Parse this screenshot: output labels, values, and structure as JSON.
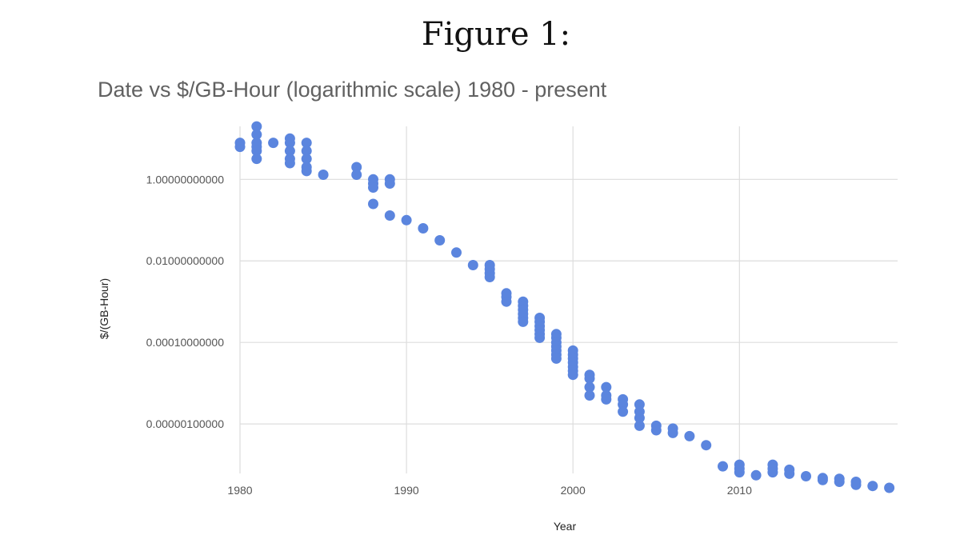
{
  "figure_caption": "Figure 1:",
  "chart_data": {
    "type": "scatter",
    "title": "Date vs $/GB-Hour (logarithmic scale) 1980 - present",
    "xlabel": "Year",
    "ylabel": "$/(GB-Hour)",
    "x_ticks": [
      1980,
      1990,
      2000,
      2010
    ],
    "x_tick_labels": [
      "1980",
      "1990",
      "2000",
      "2010"
    ],
    "y_ticks": [
      1,
      0.01,
      0.0001,
      1e-06
    ],
    "y_tick_labels": [
      "1.00000000000",
      "0.01000000000",
      "0.00010000000",
      "0.00000100000"
    ],
    "xlim": [
      1980,
      2019.5
    ],
    "ylim": [
      6.1e-08,
      20
    ],
    "y_scale": "log",
    "grid": true,
    "color": "#5b85de",
    "series": [
      {
        "points": [
          [
            1980,
            7.9
          ],
          [
            1980,
            6.3
          ],
          [
            1981,
            19.9
          ],
          [
            1981,
            12.6
          ],
          [
            1981,
            7.9
          ],
          [
            1981,
            6.3
          ],
          [
            1981,
            5.0
          ],
          [
            1981,
            3.2
          ],
          [
            1982,
            7.9
          ],
          [
            1983,
            10.0
          ],
          [
            1983,
            7.9
          ],
          [
            1983,
            5.0
          ],
          [
            1983,
            3.2
          ],
          [
            1983,
            2.5
          ],
          [
            1984,
            7.9
          ],
          [
            1984,
            5.0
          ],
          [
            1984,
            3.2
          ],
          [
            1984,
            2.0
          ],
          [
            1984,
            1.6
          ],
          [
            1985,
            1.3
          ],
          [
            1987,
            2.0
          ],
          [
            1987,
            1.3
          ],
          [
            1988,
            1.0
          ],
          [
            1988,
            0.79
          ],
          [
            1988,
            0.63
          ],
          [
            1988,
            0.25
          ],
          [
            1989,
            1.0
          ],
          [
            1989,
            0.79
          ],
          [
            1989,
            0.13
          ],
          [
            1990,
            0.1
          ],
          [
            1991,
            0.063
          ],
          [
            1992,
            0.032
          ],
          [
            1993,
            0.016
          ],
          [
            1994,
            0.0079
          ],
          [
            1995,
            0.0079
          ],
          [
            1995,
            0.0063
          ],
          [
            1995,
            0.005
          ],
          [
            1995,
            0.004
          ],
          [
            1996,
            0.0016
          ],
          [
            1996,
            0.0013
          ],
          [
            1996,
            0.001
          ],
          [
            1997,
            0.001
          ],
          [
            1997,
            0.00079
          ],
          [
            1997,
            0.00063
          ],
          [
            1997,
            0.0005
          ],
          [
            1997,
            0.0004
          ],
          [
            1997,
            0.00032
          ],
          [
            1998,
            0.0004
          ],
          [
            1998,
            0.00032
          ],
          [
            1998,
            0.00025
          ],
          [
            1998,
            0.0002
          ],
          [
            1998,
            0.00016
          ],
          [
            1998,
            0.00013
          ],
          [
            1999,
            0.00016
          ],
          [
            1999,
            0.00013
          ],
          [
            1999,
            0.0001
          ],
          [
            1999,
            7.9e-05
          ],
          [
            1999,
            6.3e-05
          ],
          [
            1999,
            5e-05
          ],
          [
            1999,
            4e-05
          ],
          [
            2000,
            6.3e-05
          ],
          [
            2000,
            5e-05
          ],
          [
            2000,
            4e-05
          ],
          [
            2000,
            3.2e-05
          ],
          [
            2000,
            2.5e-05
          ],
          [
            2000,
            2e-05
          ],
          [
            2000,
            1.6e-05
          ],
          [
            2001,
            1.6e-05
          ],
          [
            2001,
            1.3e-05
          ],
          [
            2001,
            8e-06
          ],
          [
            2001,
            5e-06
          ],
          [
            2002,
            8e-06
          ],
          [
            2002,
            5e-06
          ],
          [
            2002,
            4e-06
          ],
          [
            2003,
            4e-06
          ],
          [
            2003,
            3e-06
          ],
          [
            2003,
            2e-06
          ],
          [
            2004,
            3e-06
          ],
          [
            2004,
            2e-06
          ],
          [
            2004,
            1.4e-06
          ],
          [
            2004,
            9e-07
          ],
          [
            2005,
            9e-07
          ],
          [
            2005,
            7e-07
          ],
          [
            2006,
            7.7e-07
          ],
          [
            2006,
            6e-07
          ],
          [
            2007,
            5e-07
          ],
          [
            2008,
            3e-07
          ],
          [
            2009,
            9.1e-08
          ],
          [
            2010,
            1e-07
          ],
          [
            2010,
            8e-08
          ],
          [
            2010,
            6.5e-08
          ],
          [
            2011,
            5.5e-08
          ],
          [
            2012,
            1e-07
          ],
          [
            2012,
            8e-08
          ],
          [
            2012,
            6.5e-08
          ],
          [
            2013,
            7.5e-08
          ],
          [
            2013,
            6e-08
          ],
          [
            2014,
            5.2e-08
          ],
          [
            2015,
            4.7e-08
          ],
          [
            2015,
            4.2e-08
          ],
          [
            2016,
            4.5e-08
          ],
          [
            2016,
            3.8e-08
          ],
          [
            2017,
            3.8e-08
          ],
          [
            2017,
            3.2e-08
          ],
          [
            2018,
            3e-08
          ],
          [
            2019,
            2.7e-08
          ]
        ]
      }
    ]
  }
}
